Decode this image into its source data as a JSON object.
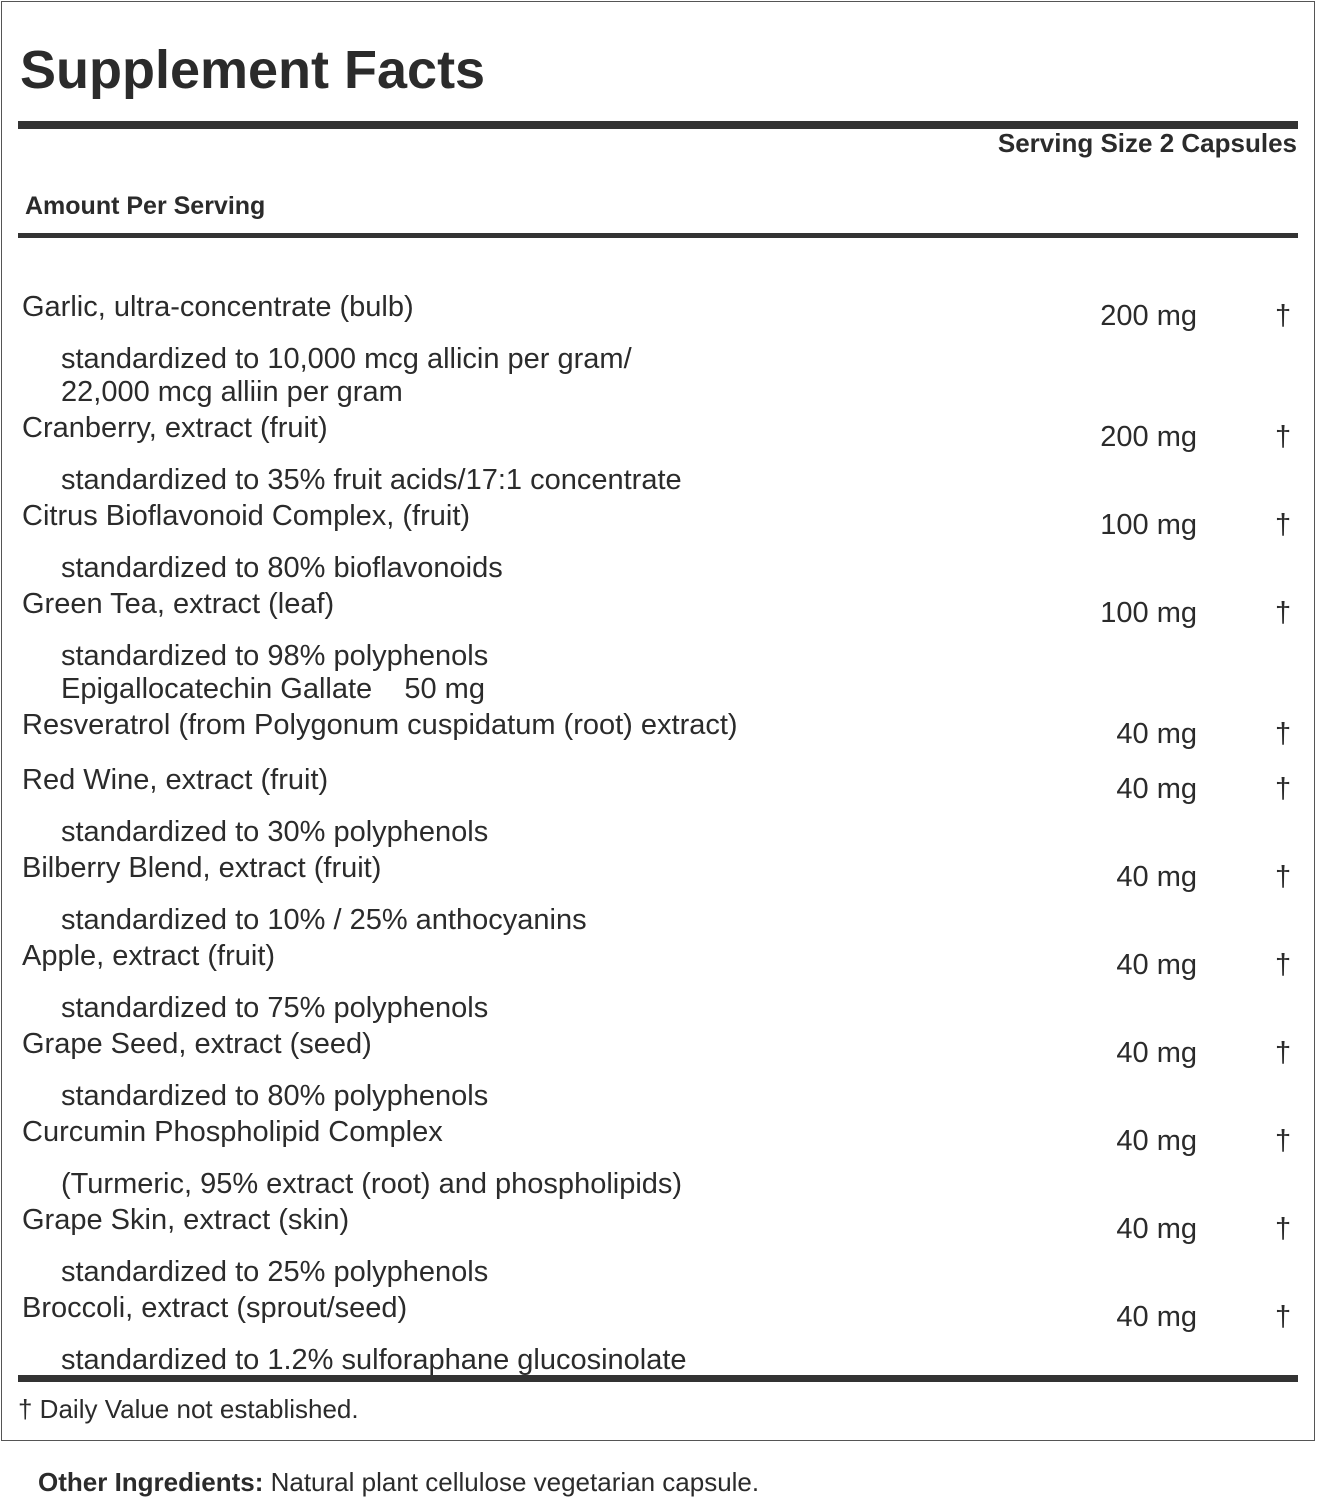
{
  "header": {
    "title": "Supplement Facts",
    "serving_size": "Serving Size 2 Capsules",
    "amount_per_serving": "Amount Per Serving"
  },
  "rows": [
    {
      "name": "Garlic, ultra-concentrate (bulb)",
      "amount": "200 mg",
      "dv": "†",
      "notes": [
        "standardized to 10,000 mcg allicin per gram/",
        "22,000 mcg alliin per gram"
      ]
    },
    {
      "name": "Cranberry, extract (fruit)",
      "amount": "200 mg",
      "dv": "†",
      "notes": [
        "standardized to 35% fruit acids/17:1 concentrate"
      ]
    },
    {
      "name": "Citrus Bioflavonoid Complex, (fruit)",
      "amount": "100 mg",
      "dv": "†",
      "notes": [
        "standardized to 80% bioflavonoids"
      ]
    },
    {
      "name": "Green Tea, extract (leaf)",
      "amount": "100 mg",
      "dv": "†",
      "notes": [
        "standardized to 98% polyphenols",
        "Epigallocatechin Gallate    50 mg"
      ]
    },
    {
      "name": "Resveratrol (from Polygonum cuspidatum (root) extract)",
      "amount": "40 mg",
      "dv": "†",
      "notes": []
    },
    {
      "name": "Red Wine, extract (fruit)",
      "amount": "40 mg",
      "dv": "†",
      "notes": [
        "standardized to 30% polyphenols"
      ]
    },
    {
      "name": "Bilberry Blend, extract (fruit)",
      "amount": "40 mg",
      "dv": "†",
      "notes": [
        "standardized to 10% / 25% anthocyanins"
      ]
    },
    {
      "name": "Apple, extract (fruit)",
      "amount": "40 mg",
      "dv": "†",
      "notes": [
        "standardized to 75% polyphenols"
      ]
    },
    {
      "name": "Grape Seed, extract (seed)",
      "amount": "40 mg",
      "dv": "†",
      "notes": [
        "standardized to 80% polyphenols"
      ]
    },
    {
      "name": "Curcumin Phospholipid Complex",
      "amount": "40 mg",
      "dv": "†",
      "notes": [
        "(Turmeric, 95% extract (root) and phospholipids)"
      ]
    },
    {
      "name": "Grape Skin, extract (skin)",
      "amount": "40 mg",
      "dv": "†",
      "notes": [
        "standardized to 25% polyphenols"
      ]
    },
    {
      "name": "Broccoli, extract (sprout/seed)",
      "amount": "40 mg",
      "dv": "†",
      "notes": [
        "standardized to 1.2% sulforaphane glucosinolate"
      ]
    }
  ],
  "footnote": "† Daily Value not established.",
  "other_ingredients": {
    "label": "Other Ingredients:",
    "text": "Natural plant cellulose vegetarian capsule."
  }
}
